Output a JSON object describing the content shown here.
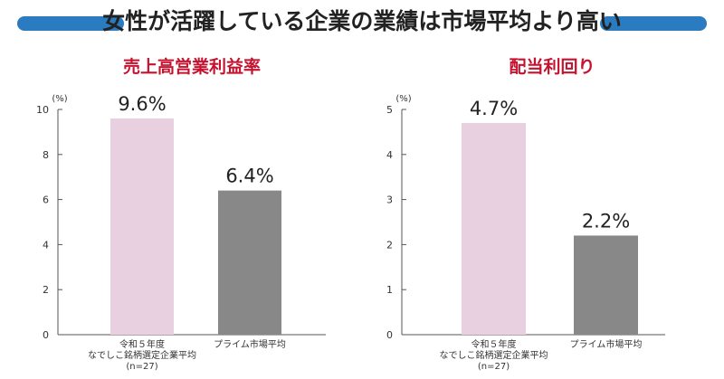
{
  "header": {
    "title": "女性が活躍している企業の業績は市場平均より高い",
    "accent_color": "#2a7bbf"
  },
  "chart_data": [
    {
      "type": "bar",
      "title": "売上高営業利益率",
      "unit": "(%)",
      "categories": [
        [
          "令和５年度",
          "なでしこ銘柄選定企業平均",
          "(n=27)"
        ],
        [
          "プライム市場平均"
        ]
      ],
      "values": [
        9.6,
        6.4
      ],
      "value_labels": [
        "9.6%",
        "6.4%"
      ],
      "colors": [
        "#e8d0e0",
        "#888888"
      ],
      "ylim": [
        0,
        10
      ],
      "yticks": [
        0,
        2,
        4,
        6,
        8,
        10
      ],
      "title_color": "#c4122f",
      "grid": false
    },
    {
      "type": "bar",
      "title": "配当利回り",
      "unit": "(%)",
      "categories": [
        [
          "令和５年度",
          "なでしこ銘柄選定企業平均",
          "(n=27)"
        ],
        [
          "プライム市場平均"
        ]
      ],
      "values": [
        4.7,
        2.2
      ],
      "value_labels": [
        "4.7%",
        "2.2%"
      ],
      "colors": [
        "#e8d0e0",
        "#888888"
      ],
      "ylim": [
        0,
        5
      ],
      "yticks": [
        0,
        1,
        2,
        3,
        4,
        5
      ],
      "title_color": "#c4122f",
      "grid": false
    }
  ]
}
